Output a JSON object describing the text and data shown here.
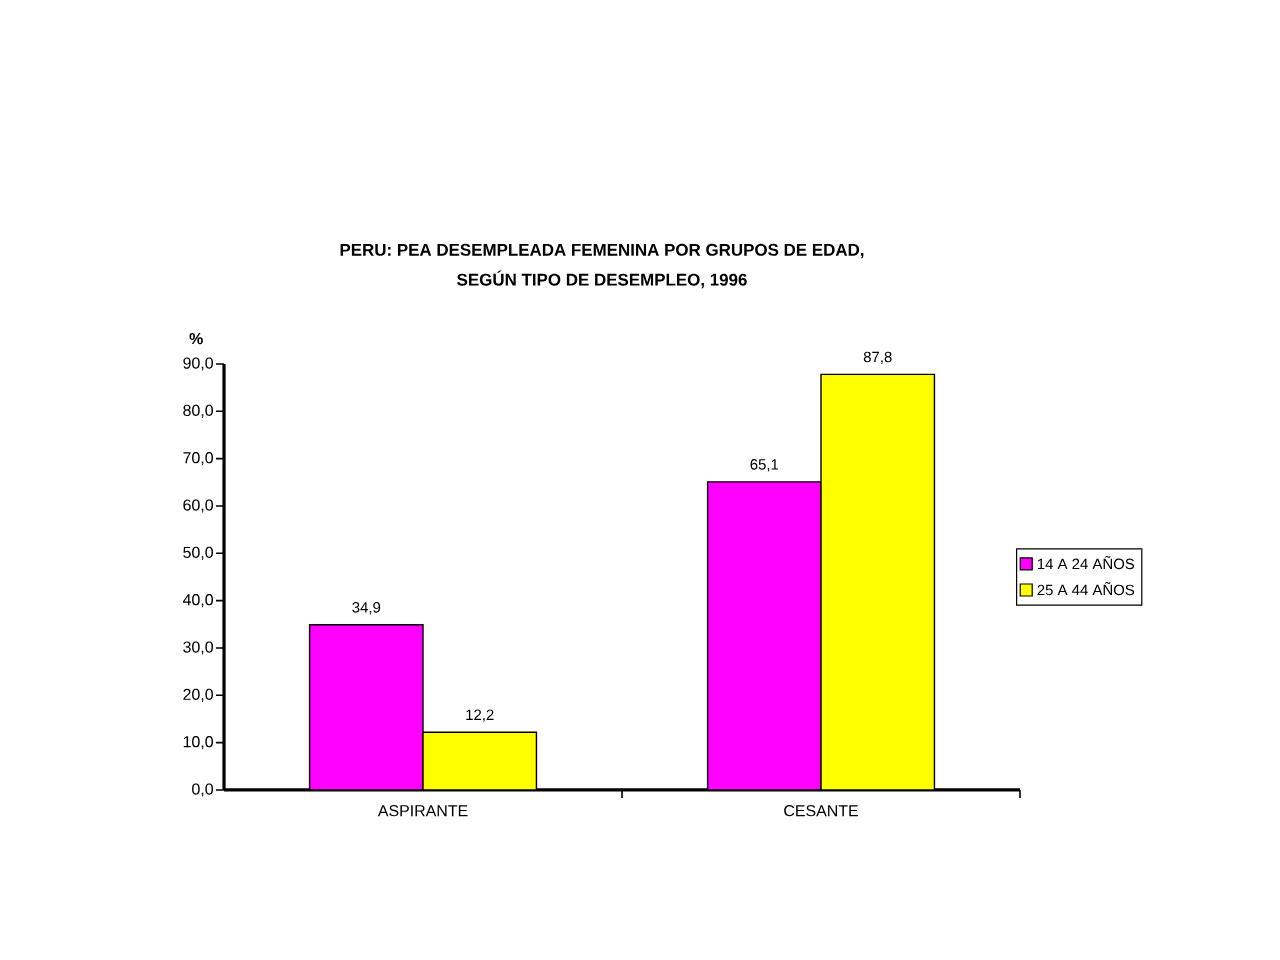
{
  "chart_data": {
    "type": "bar",
    "title": "PERU: PEA DESEMPLEADA FEMENINA POR GRUPOS DE EDAD, SEGÚN TIPO DE DESEMPLEO, 1996",
    "ylabel": "%",
    "categories": [
      "ASPIRANTE",
      "CESANTE"
    ],
    "series": [
      {
        "name": "14 A 24 AÑOS",
        "color": "#ff00ff",
        "values": [
          34.9,
          65.1
        ],
        "value_labels": [
          "34,9",
          "65,1"
        ]
      },
      {
        "name": "25 A 44 AÑOS",
        "color": "#ffff00",
        "values": [
          12.2,
          87.8
        ],
        "value_labels": [
          "12,2",
          "87,8"
        ]
      }
    ],
    "ylim": [
      0,
      90
    ],
    "yticks": [
      {
        "value": 0,
        "label": "0,0"
      },
      {
        "value": 10,
        "label": "10,0"
      },
      {
        "value": 20,
        "label": "20,0"
      },
      {
        "value": 30,
        "label": "30,0"
      },
      {
        "value": 40,
        "label": "40,0"
      },
      {
        "value": 50,
        "label": "50,0"
      },
      {
        "value": 60,
        "label": "60,0"
      },
      {
        "value": 70,
        "label": "70,0"
      },
      {
        "value": 80,
        "label": "80,0"
      },
      {
        "value": 90,
        "label": "90,0"
      }
    ],
    "legend": "right"
  }
}
